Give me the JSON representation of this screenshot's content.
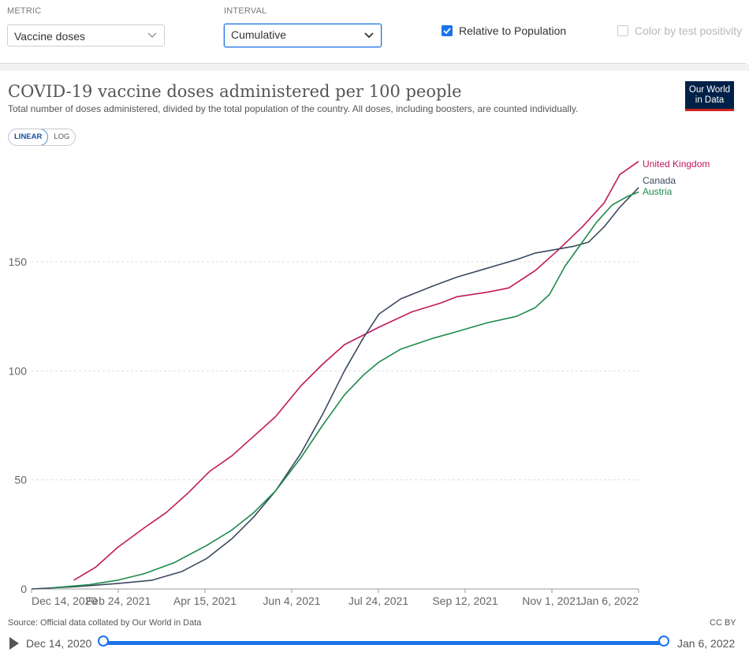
{
  "controls": {
    "metric": {
      "label": "METRIC",
      "value": "Vaccine doses"
    },
    "interval": {
      "label": "INTERVAL",
      "value": "Cumulative"
    },
    "relative": {
      "label": "Relative to Population",
      "checked": true
    },
    "color_by": {
      "label": "Color by test positivity",
      "checked": false
    }
  },
  "header": {
    "title": "COVID-19 vaccine doses administered per 100 people",
    "subtitle": "Total number of doses administered, divided by the total population of the country. All doses, including boosters, are counted individually.",
    "logo_line1": "Our World",
    "logo_line2": "in Data"
  },
  "scale_toggle": {
    "linear": "LINEAR",
    "log": "LOG",
    "selected": "LINEAR"
  },
  "footer": {
    "source": "Source: Official data collated by Our World in Data",
    "license": "CC BY"
  },
  "timeline": {
    "start": "Dec 14, 2020",
    "end": "Jan 6, 2022"
  },
  "colors": {
    "uk": "#c2185b",
    "canada": "#3b4a5f",
    "austria": "#1e8a4c",
    "accent": "#1a73e8"
  },
  "chart_data": {
    "type": "line",
    "title": "COVID-19 vaccine doses administered per 100 people",
    "xlabel": "",
    "ylabel": "",
    "x_ticks": [
      "Dec 14, 2020",
      "Feb 24, 2021",
      "Apr 15, 2021",
      "Jun 4, 2021",
      "Jul 24, 2021",
      "Sep 12, 2021",
      "Nov 1, 2021",
      "Jan 6, 2022"
    ],
    "y_ticks": [
      0,
      50,
      100,
      150
    ],
    "ylim": [
      0,
      200
    ],
    "grid": "horizontal dashed",
    "legend": "line-end labels",
    "series": [
      {
        "name": "United Kingdom",
        "color": "#c2185b",
        "points": [
          [
            "2021-01-10",
            4
          ],
          [
            "2021-01-24",
            10
          ],
          [
            "2021-02-07",
            19
          ],
          [
            "2021-02-24",
            28
          ],
          [
            "2021-03-10",
            35
          ],
          [
            "2021-03-24",
            44
          ],
          [
            "2021-04-07",
            54
          ],
          [
            "2021-04-21",
            61
          ],
          [
            "2021-05-05",
            70
          ],
          [
            "2021-05-19",
            79
          ],
          [
            "2021-06-04",
            93
          ],
          [
            "2021-06-18",
            103
          ],
          [
            "2021-07-02",
            112
          ],
          [
            "2021-07-24",
            120
          ],
          [
            "2021-08-14",
            127
          ],
          [
            "2021-09-01",
            131
          ],
          [
            "2021-09-12",
            134
          ],
          [
            "2021-10-01",
            136
          ],
          [
            "2021-10-15",
            138
          ],
          [
            "2021-11-01",
            146
          ],
          [
            "2021-11-15",
            155
          ],
          [
            "2021-12-01",
            166
          ],
          [
            "2021-12-15",
            177
          ],
          [
            "2021-12-25",
            190
          ],
          [
            "2022-01-06",
            196
          ]
        ]
      },
      {
        "name": "Canada",
        "color": "#3b4a5f",
        "points": [
          [
            "2020-12-14",
            0
          ],
          [
            "2021-01-10",
            1
          ],
          [
            "2021-02-07",
            2.5
          ],
          [
            "2021-03-01",
            4
          ],
          [
            "2021-03-20",
            8
          ],
          [
            "2021-04-05",
            14
          ],
          [
            "2021-04-21",
            23
          ],
          [
            "2021-05-05",
            33
          ],
          [
            "2021-05-19",
            45
          ],
          [
            "2021-06-04",
            62
          ],
          [
            "2021-06-18",
            80
          ],
          [
            "2021-07-02",
            100
          ],
          [
            "2021-07-14",
            115
          ],
          [
            "2021-07-24",
            126
          ],
          [
            "2021-08-07",
            133
          ],
          [
            "2021-08-28",
            139
          ],
          [
            "2021-09-12",
            143
          ],
          [
            "2021-10-01",
            147
          ],
          [
            "2021-10-20",
            151
          ],
          [
            "2021-11-01",
            154
          ],
          [
            "2021-11-25",
            157
          ],
          [
            "2021-12-05",
            159
          ],
          [
            "2021-12-15",
            166
          ],
          [
            "2021-12-25",
            175
          ],
          [
            "2022-01-06",
            184
          ]
        ]
      },
      {
        "name": "Austria",
        "color": "#1e8a4c",
        "points": [
          [
            "2020-12-27",
            0.5
          ],
          [
            "2021-01-20",
            2
          ],
          [
            "2021-02-07",
            4
          ],
          [
            "2021-02-24",
            7
          ],
          [
            "2021-03-15",
            12
          ],
          [
            "2021-04-05",
            20
          ],
          [
            "2021-04-21",
            27
          ],
          [
            "2021-05-05",
            35
          ],
          [
            "2021-05-19",
            45
          ],
          [
            "2021-06-04",
            60
          ],
          [
            "2021-06-18",
            75
          ],
          [
            "2021-07-02",
            89
          ],
          [
            "2021-07-14",
            98
          ],
          [
            "2021-07-24",
            104
          ],
          [
            "2021-08-07",
            110
          ],
          [
            "2021-08-28",
            115
          ],
          [
            "2021-09-12",
            118
          ],
          [
            "2021-10-01",
            122
          ],
          [
            "2021-10-20",
            125
          ],
          [
            "2021-11-01",
            129
          ],
          [
            "2021-11-10",
            135
          ],
          [
            "2021-11-20",
            148
          ],
          [
            "2021-12-01",
            159
          ],
          [
            "2021-12-10",
            168
          ],
          [
            "2021-12-20",
            176
          ],
          [
            "2021-12-30",
            180
          ],
          [
            "2022-01-06",
            182
          ]
        ]
      }
    ]
  }
}
